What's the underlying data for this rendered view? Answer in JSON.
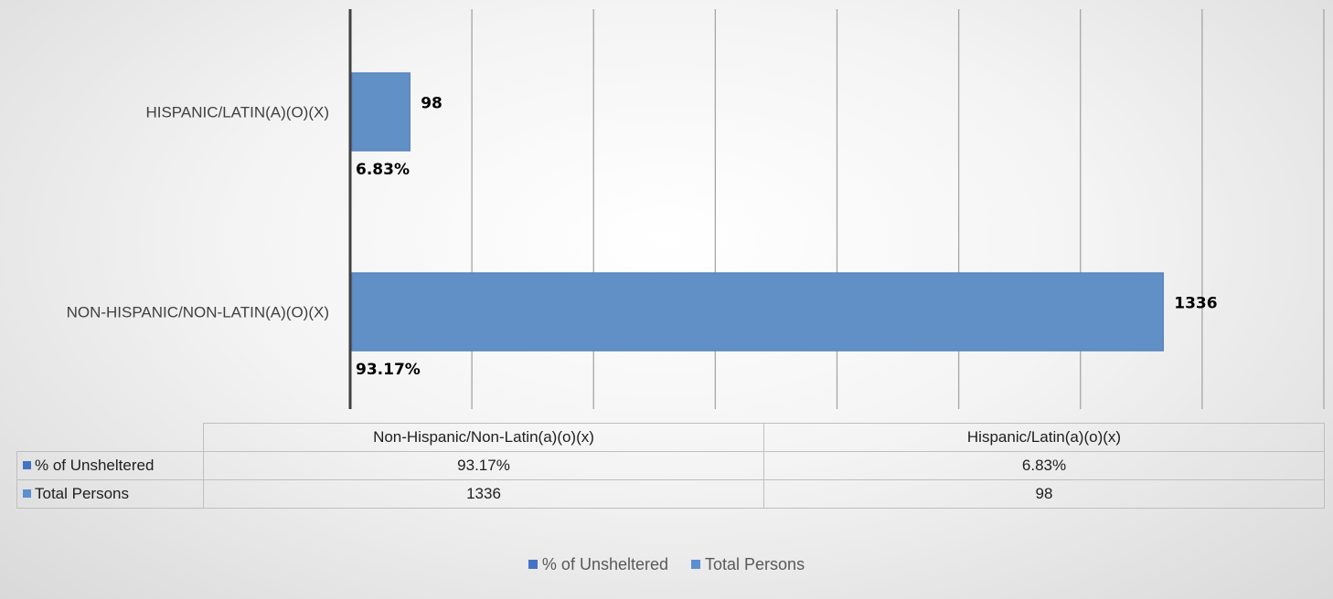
{
  "colors": {
    "pct_series": "#4472c4",
    "total_series": "#5b8fd0",
    "bar_fill": "#6190c6",
    "bar_stroke": "#5a86bd"
  },
  "chart_data": {
    "type": "bar",
    "orientation": "horizontal",
    "categories": [
      "HISPANIC/LATIN(A)(O)(X)",
      "NON-HISPANIC/NON-LATIN(A)(O)(X)"
    ],
    "series": [
      {
        "name": "% of Unsheltered",
        "values": [
          6.83,
          93.17
        ],
        "labels": [
          "6.83%",
          "93.17%"
        ],
        "color_key": "pct_series"
      },
      {
        "name": "Total Persons",
        "values": [
          98,
          1336
        ],
        "labels": [
          "98",
          "1336"
        ],
        "color_key": "total_series"
      }
    ],
    "xlim": [
      0,
      1600
    ],
    "grid": true,
    "legend_position": "bottom"
  },
  "table": {
    "headers": [
      "Non-Hispanic/Non-Latin(a)(o)(x)",
      "Hispanic/Latin(a)(o)(x)"
    ],
    "rows": [
      {
        "label": "% of Unsheltered",
        "cells": [
          "93.17%",
          "6.83%"
        ],
        "color_key": "pct_series"
      },
      {
        "label": "Total Persons",
        "cells": [
          "1336",
          "98"
        ],
        "color_key": "total_series"
      }
    ]
  },
  "legend": {
    "items": [
      {
        "label": "% of Unsheltered",
        "color_key": "pct_series"
      },
      {
        "label": "Total Persons",
        "color_key": "total_series"
      }
    ]
  }
}
